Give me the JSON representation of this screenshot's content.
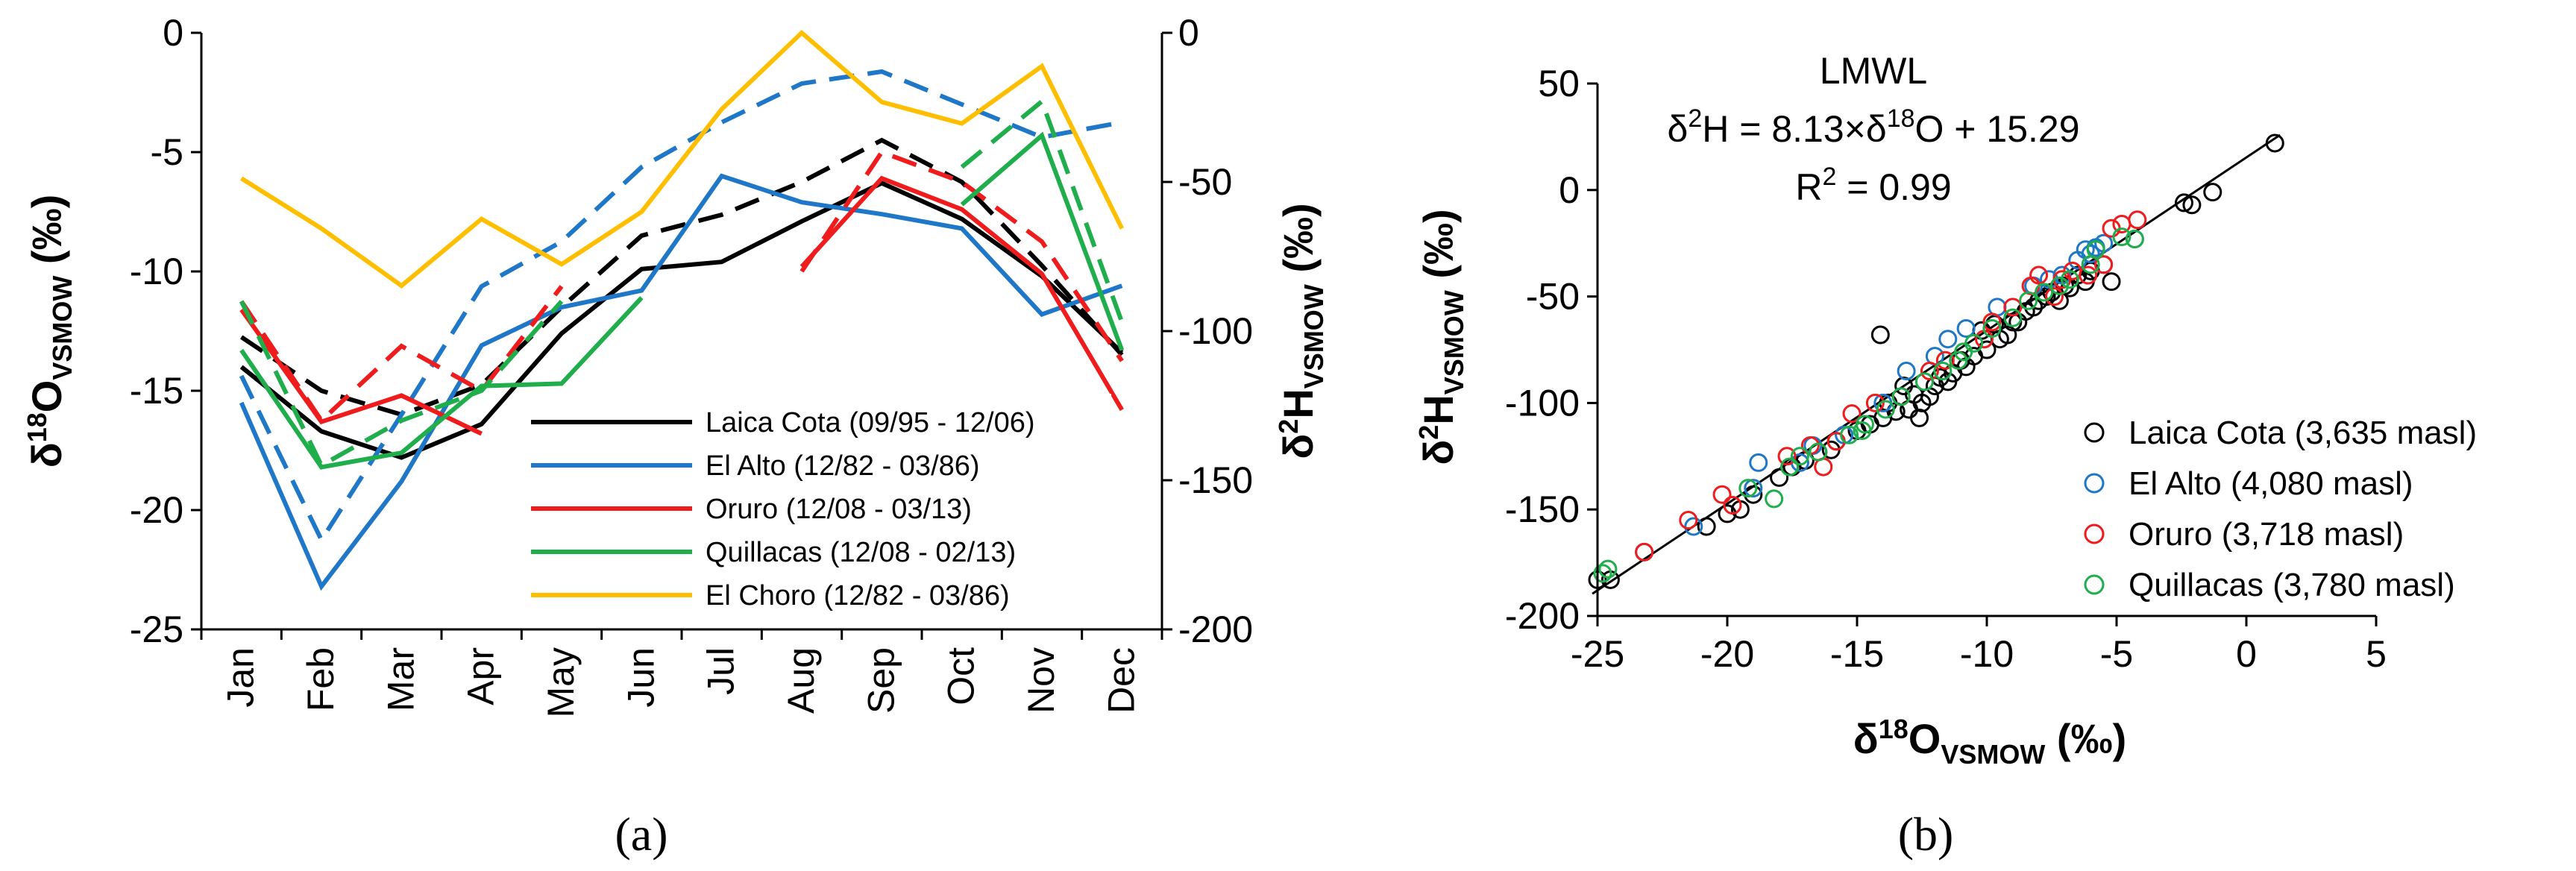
{
  "chart_data": [
    {
      "panel": "a",
      "caption": "(a)",
      "type": "line",
      "categories": [
        "Jan",
        "Feb",
        "Mar",
        "Apr",
        "May",
        "Jun",
        "Jul",
        "Aug",
        "Sep",
        "Oct",
        "Nov",
        "Dec"
      ],
      "ylabel_left": {
        "main": "δ",
        "sup": "18",
        "sym": "O",
        "sub": "VSMOW",
        "unit": " (‰)"
      },
      "ylabel_right": {
        "main": "δ",
        "sup": "2",
        "sym": "H",
        "sub": "VSMOW",
        "unit": " (‰)"
      },
      "ylim_left": [
        -25,
        0
      ],
      "ylim_right": [
        -200,
        0
      ],
      "yticks_left": [
        "0",
        "-5",
        "-10",
        "-15",
        "-20",
        "-25"
      ],
      "yticks_right": [
        "0",
        "-50",
        "-100",
        "-150",
        "-200"
      ],
      "series": [
        {
          "name": "Laica Cota (09/95 - 12/06)",
          "color": "#000000",
          "o18": [
            -14.0,
            -16.7,
            -17.8,
            -16.4,
            -12.6,
            -9.9,
            -9.6,
            -7.9,
            -6.3,
            -7.8,
            -10.2,
            -13.4
          ],
          "h2": [
            -102,
            -120,
            -128,
            -118,
            -92,
            -68,
            -61,
            -50,
            -36,
            -50,
            -78,
            -108
          ]
        },
        {
          "name": "El Alto (12/82 - 03/86)",
          "color": "#1f77c7",
          "o18": [
            -15.5,
            -23.2,
            -18.8,
            -13.1,
            -11.5,
            -10.8,
            -6.0,
            -7.1,
            -7.6,
            -8.2,
            -11.8,
            -10.6
          ],
          "h2": [
            -115,
            -170,
            -128,
            -85,
            -70,
            -45,
            -30,
            -17,
            -13,
            -24,
            -35,
            -30
          ]
        },
        {
          "name": "Oruro (12/08 - 03/13)",
          "color": "#ee1c1c",
          "o18": [
            -11.6,
            -16.3,
            -15.2,
            -16.8,
            null,
            null,
            null,
            -9.8,
            -6.1,
            -7.4,
            -10.1,
            -15.8
          ],
          "h2": [
            -90,
            -130,
            -105,
            -120,
            -85,
            null,
            null,
            -80,
            -40,
            -50,
            -70,
            -110
          ]
        },
        {
          "name": "Quillacas (12/08 - 02/13)",
          "color": "#1fae4b",
          "o18": [
            -13.3,
            -18.2,
            -17.6,
            -14.8,
            -14.7,
            -11.1,
            null,
            null,
            null,
            -7.2,
            -4.3,
            -13.3
          ],
          "h2": [
            -90,
            -145,
            -130,
            -120,
            -90,
            null,
            null,
            null,
            null,
            -45,
            -23,
            -97
          ]
        },
        {
          "name": "El Choro (12/82 - 03/86)",
          "color": "#ffbf00",
          "o18": [
            -6.1,
            -8.2,
            -10.6,
            -7.8,
            -9.7,
            -7.5,
            -3.2,
            0.0,
            -2.9,
            -3.8,
            -1.4,
            -8.2
          ],
          "h2": [
            null,
            null,
            null,
            null,
            null,
            null,
            null,
            null,
            null,
            null,
            null,
            null
          ]
        }
      ]
    },
    {
      "panel": "b",
      "caption": "(b)",
      "type": "scatter",
      "xlabel": {
        "main": "δ",
        "sup": "18",
        "sym": "O",
        "sub": "VSMOW",
        "unit": " (‰)"
      },
      "ylabel": {
        "main": "δ",
        "sup": "2",
        "sym": "H",
        "sub": "VSMOW",
        "unit": " (‰)"
      },
      "xlim": [
        -25,
        5
      ],
      "ylim": [
        -200,
        50
      ],
      "xticks": [
        "-25",
        "-20",
        "-15",
        "-10",
        "-5",
        "0",
        "5"
      ],
      "yticks": [
        "50",
        "0",
        "-50",
        "-100",
        "-150",
        "-200"
      ],
      "annotation": {
        "title": "LMWL",
        "eq_prefix": "δ",
        "eq_sup1": "2",
        "eq_mid": "H = 8.13×δ",
        "eq_sup2": "18",
        "eq_suffix": "O + 15.29",
        "r2_prefix": "R",
        "r2_sup": "2",
        "r2_suffix": " = 0.99"
      },
      "fit_line": {
        "slope": 8.13,
        "intercept": 15.29,
        "x_range": [
          -25.2,
          1.3
        ]
      },
      "legend": [
        "Laica Cota (3,635 masl)",
        "El Alto (4,080 masl)",
        "Oruro (3,718 masl)",
        "Quillacas (3,780 masl)"
      ],
      "series": [
        {
          "name": "Laica Cota (3,635 masl)",
          "color": "#000000",
          "points": [
            [
              1.1,
              22
            ],
            [
              -1.3,
              -1
            ],
            [
              -2.1,
              -7
            ],
            [
              -2.4,
              -6
            ],
            [
              -24.5,
              -183
            ],
            [
              -25,
              -183
            ],
            [
              -20.8,
              -158
            ],
            [
              -20,
              -152
            ],
            [
              -19.5,
              -150
            ],
            [
              -18,
              -135
            ],
            [
              -17,
              -127
            ],
            [
              -16.5,
              -123
            ],
            [
              -15.8,
              -118
            ],
            [
              -15,
              -113
            ],
            [
              -14.5,
              -110
            ],
            [
              -14,
              -107
            ],
            [
              -13.5,
              -104
            ],
            [
              -13,
              -103
            ],
            [
              -12.5,
              -100
            ],
            [
              -12.6,
              -107
            ],
            [
              -12,
              -92
            ],
            [
              -11.5,
              -90
            ],
            [
              -11,
              -80
            ],
            [
              -10.5,
              -78
            ],
            [
              -10,
              -75
            ],
            [
              -9.5,
              -70
            ],
            [
              -9,
              -62
            ],
            [
              -8.5,
              -57
            ],
            [
              -8,
              -52
            ],
            [
              -7.5,
              -48
            ],
            [
              -7,
              -45
            ],
            [
              -6.5,
              -40
            ],
            [
              -6,
              -38
            ],
            [
              -5.5,
              -35
            ],
            [
              -5.2,
              -43
            ],
            [
              -14.1,
              -68
            ],
            [
              -13.2,
              -92
            ],
            [
              -11.8,
              -88
            ],
            [
              -10.8,
              -83
            ],
            [
              -9.2,
              -68
            ],
            [
              -8.8,
              -62
            ],
            [
              -7.2,
              -52
            ],
            [
              -6.8,
              -46
            ],
            [
              -6.2,
              -43
            ],
            [
              -12.2,
              -97
            ],
            [
              -13.8,
              -100
            ],
            [
              -16,
              -122
            ],
            [
              -17.5,
              -130
            ],
            [
              -19,
              -143
            ],
            [
              -10.2,
              -66
            ],
            [
              -9.7,
              -63
            ],
            [
              -8.2,
              -55
            ],
            [
              -7.7,
              -50
            ],
            [
              -11.3,
              -86
            ],
            [
              -12.8,
              -96
            ]
          ]
        },
        {
          "name": "El Alto (4,080 masl)",
          "color": "#1f77c7",
          "points": [
            [
              -23.2,
              -170
            ],
            [
              -21.3,
              -158
            ],
            [
              -18.8,
              -128
            ],
            [
              -16.7,
              -120
            ],
            [
              -15.5,
              -115
            ],
            [
              -13.1,
              -85
            ],
            [
              -11.5,
              -70
            ],
            [
              -10.8,
              -65
            ],
            [
              -8.2,
              -45
            ],
            [
              -7.1,
              -40
            ],
            [
              -7.6,
              -42
            ],
            [
              -6,
              -30
            ],
            [
              -6.2,
              -28
            ],
            [
              -5.8,
              -27
            ],
            [
              -4.3,
              -23
            ],
            [
              -9.6,
              -55
            ],
            [
              -12,
              -78
            ],
            [
              -14,
              -100
            ],
            [
              -17.2,
              -128
            ],
            [
              -19,
              -140
            ],
            [
              -6.5,
              -33
            ],
            [
              -5.5,
              -25
            ]
          ]
        },
        {
          "name": "Oruro (3,718 masl)",
          "color": "#ee1c1c",
          "points": [
            [
              -4.2,
              -14
            ],
            [
              -4.8,
              -16
            ],
            [
              -5.5,
              -35
            ],
            [
              -6.1,
              -40
            ],
            [
              -7.4,
              -50
            ],
            [
              -9.8,
              -62
            ],
            [
              -10.1,
              -70
            ],
            [
              -11.6,
              -80
            ],
            [
              -13.3,
              -97
            ],
            [
              -15.2,
              -105
            ],
            [
              -15.8,
              -118
            ],
            [
              -16.3,
              -130
            ],
            [
              -16.8,
              -120
            ],
            [
              -20.2,
              -143
            ],
            [
              -21.5,
              -155
            ],
            [
              -23.2,
              -170
            ],
            [
              -8.3,
              -45
            ],
            [
              -8,
              -40
            ],
            [
              -7.1,
              -42
            ],
            [
              -6.7,
              -38
            ],
            [
              -5.2,
              -18
            ],
            [
              -14.3,
              -100
            ],
            [
              -17.7,
              -125
            ],
            [
              -12.2,
              -85
            ],
            [
              -9,
              -55
            ],
            [
              -19.8,
              -148
            ]
          ]
        },
        {
          "name": "Quillacas (3,780 masl)",
          "color": "#1fae4b",
          "points": [
            [
              -24.8,
              -180
            ],
            [
              -24.6,
              -178
            ],
            [
              -18.2,
              -145
            ],
            [
              -17.6,
              -130
            ],
            [
              -14.8,
              -113
            ],
            [
              -14.7,
              -110
            ],
            [
              -13.3,
              -97
            ],
            [
              -11.1,
              -80
            ],
            [
              -10.5,
              -72
            ],
            [
              -9.8,
              -65
            ],
            [
              -9,
              -60
            ],
            [
              -7.2,
              -45
            ],
            [
              -6.8,
              -42
            ],
            [
              -6,
              -35
            ],
            [
              -5.8,
              -28
            ],
            [
              -4.8,
              -22
            ],
            [
              -4.3,
              -23
            ],
            [
              -16.5,
              -123
            ],
            [
              -15.3,
              -115
            ],
            [
              -12.4,
              -90
            ],
            [
              -11.7,
              -85
            ],
            [
              -10.9,
              -76
            ],
            [
              -8.4,
              -52
            ],
            [
              -7.8,
              -48
            ],
            [
              -13.9,
              -103
            ],
            [
              -19.2,
              -140
            ],
            [
              -17.2,
              -125
            ]
          ]
        }
      ]
    }
  ]
}
